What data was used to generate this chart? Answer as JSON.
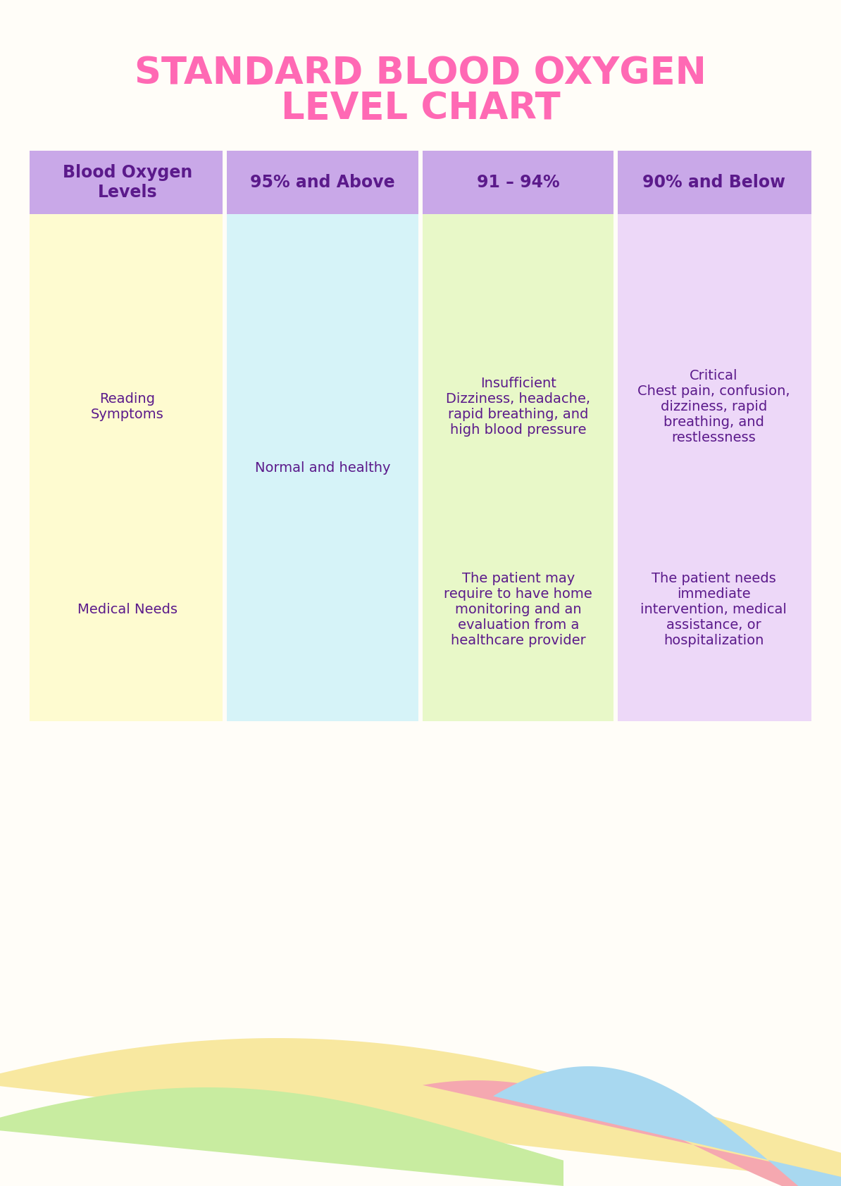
{
  "title_line1": "STANDARD BLOOD OXYGEN",
  "title_line2": "LEVEL CHART",
  "title_color": "#FF69B4",
  "title_fontsize": 38,
  "bg_color": "#FFFDF8",
  "header_bg": "#C9A8E8",
  "header_text_color": "#5B1A8B",
  "header_fontsize": 17,
  "header_bold": true,
  "col_headers": [
    "Blood Oxygen\nLevels",
    "95% and Above",
    "91 – 94%",
    "90% and Below"
  ],
  "col_colors": [
    "#FEFBD0",
    "#D6F3F8",
    "#E8F8C8",
    "#EDD8F8"
  ],
  "body_text_color": "#5B1A8B",
  "body_fontsize": 14,
  "row_labels": [
    "Reading\nSymptoms",
    "Medical Needs"
  ],
  "col1_reading": "",
  "col1_medical": "",
  "col2_reading": "Normal and healthy",
  "col2_medical": "",
  "col3_reading": "Insufficient\nDizziness, headache,\nrapid breathing, and\nhigh blood pressure",
  "col3_medical": "The patient may\nrequire to have home\nmonitoring and an\nevaluation from a\nhealthcare provider",
  "col4_reading": "Critical\nChest pain, confusion,\ndizziness, rapid\nbreathing, and\nrestlessness",
  "col4_medical": "The patient needs\nimmediate\nintervention, medical\nassistance, or\nhospitalization",
  "wave_colors": [
    "#F5E6A0",
    "#B8E8B0",
    "#F5A8B0",
    "#A8D8F0"
  ]
}
